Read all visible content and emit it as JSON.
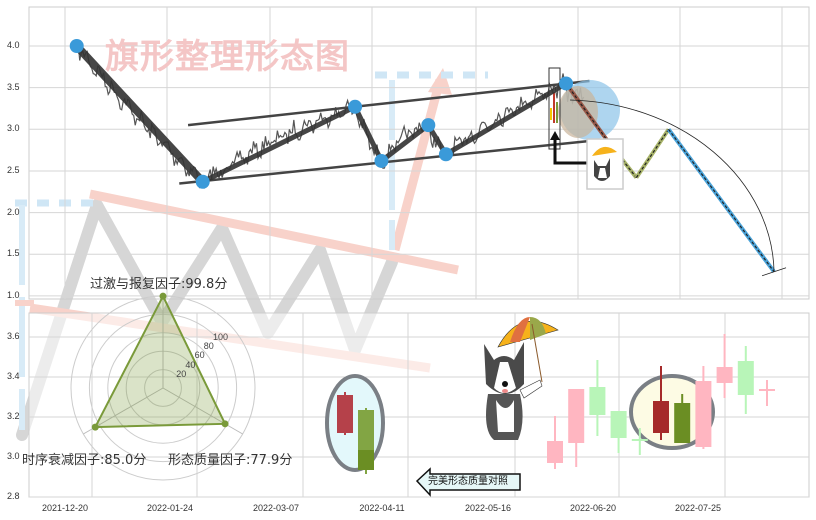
{
  "watermark_title": "旗形整理形态图",
  "callout_label": "完美形态质量对照",
  "colors": {
    "pivot": "#3a9ad9",
    "channel": "#444444",
    "watermark_pink": "#f4b9ae",
    "watermark_gray": "#cfcfcf",
    "watermark_blue": "#cfe6f5",
    "bull": "#ffb6c1",
    "bear": "#b8f5b8",
    "bull_strong": "#a52a2a",
    "bear_strong": "#6b8e23",
    "radar": "#7a9a3a"
  },
  "chart_data": [
    {
      "type": "line",
      "title": "",
      "y_ticks": [
        "4.0",
        "3.5",
        "3.0",
        "2.5",
        "2.0",
        "1.5",
        "1.0"
      ],
      "ylim": [
        1.0,
        4.0
      ],
      "grid": true,
      "pivots": [
        {
          "x": "2021-12-24",
          "y": 4.0
        },
        {
          "x": "2022-02-05",
          "y": 2.37
        },
        {
          "x": "2022-03-29",
          "y": 3.27
        },
        {
          "x": "2022-04-07",
          "y": 2.62
        },
        {
          "x": "2022-04-23",
          "y": 3.05
        },
        {
          "x": "2022-04-29",
          "y": 2.7
        },
        {
          "x": "2022-06-09",
          "y": 3.55
        }
      ],
      "channel_upper": [
        {
          "x": "2022-01-31",
          "y": 3.05
        },
        {
          "x": "2022-06-17",
          "y": 3.58
        }
      ],
      "channel_lower": [
        {
          "x": "2022-01-28",
          "y": 2.35
        },
        {
          "x": "2022-06-17",
          "y": 2.86
        }
      ],
      "projection": [
        {
          "x": "2022-06-09",
          "y": 3.55
        },
        {
          "x": "2022-06-23",
          "y": 2.87
        },
        {
          "x": "2022-07-03",
          "y": 2.42
        },
        {
          "x": "2022-07-14",
          "y": 3.0
        },
        {
          "x": "2022-08-19",
          "y": 1.29
        }
      ]
    },
    {
      "type": "candlestick",
      "y_ticks": [
        "3.6",
        "3.4",
        "3.2",
        "3.0",
        "2.8"
      ],
      "ylim": [
        2.8,
        3.7
      ],
      "x_ticks": [
        "2021-12-20",
        "2022-01-24",
        "2022-03-07",
        "2022-04-11",
        "2022-05-16",
        "2022-06-20",
        "2022-07-25"
      ],
      "grid": true,
      "reference_candles": [
        {
          "open": 3.12,
          "high": 3.325,
          "low": 3.11,
          "close": 3.31
        },
        {
          "open": 3.235,
          "high": 3.245,
          "low": 2.915,
          "close": 2.935
        }
      ],
      "candles": [
        {
          "open": 2.97,
          "high": 3.205,
          "low": 2.94,
          "close": 3.08
        },
        {
          "open": 3.07,
          "high": 3.34,
          "low": 2.95,
          "close": 3.34
        },
        {
          "open": 3.35,
          "high": 3.485,
          "low": 3.105,
          "close": 3.21
        },
        {
          "open": 3.23,
          "high": 3.23,
          "low": 3.02,
          "close": 3.095
        },
        {
          "open": 3.09,
          "high": 3.145,
          "low": 3.01,
          "close": 3.08
        },
        {
          "open": 3.12,
          "high": 3.455,
          "low": 3.085,
          "close": 3.28,
          "highlight": true
        },
        {
          "open": 3.27,
          "high": 3.315,
          "low": 3.07,
          "close": 3.07,
          "highlight": true
        },
        {
          "open": 3.05,
          "high": 3.455,
          "low": 3.04,
          "close": 3.38
        },
        {
          "open": 3.37,
          "high": 3.615,
          "low": 3.295,
          "close": 3.45
        },
        {
          "open": 3.48,
          "high": 3.555,
          "low": 3.215,
          "close": 3.31
        },
        {
          "open": 3.33,
          "high": 3.385,
          "low": 3.255,
          "close": 3.34
        }
      ]
    },
    {
      "type": "radar",
      "ring_labels": [
        "20",
        "40",
        "60",
        "80",
        "100"
      ],
      "max": 100,
      "axes": [
        {
          "label": "过激与报复因子:99.8分",
          "value": 99.8
        },
        {
          "label": "形态质量因子:77.9分",
          "value": 77.9
        },
        {
          "label": "时序衰减因子:85.0分",
          "value": 85.0
        }
      ]
    }
  ]
}
